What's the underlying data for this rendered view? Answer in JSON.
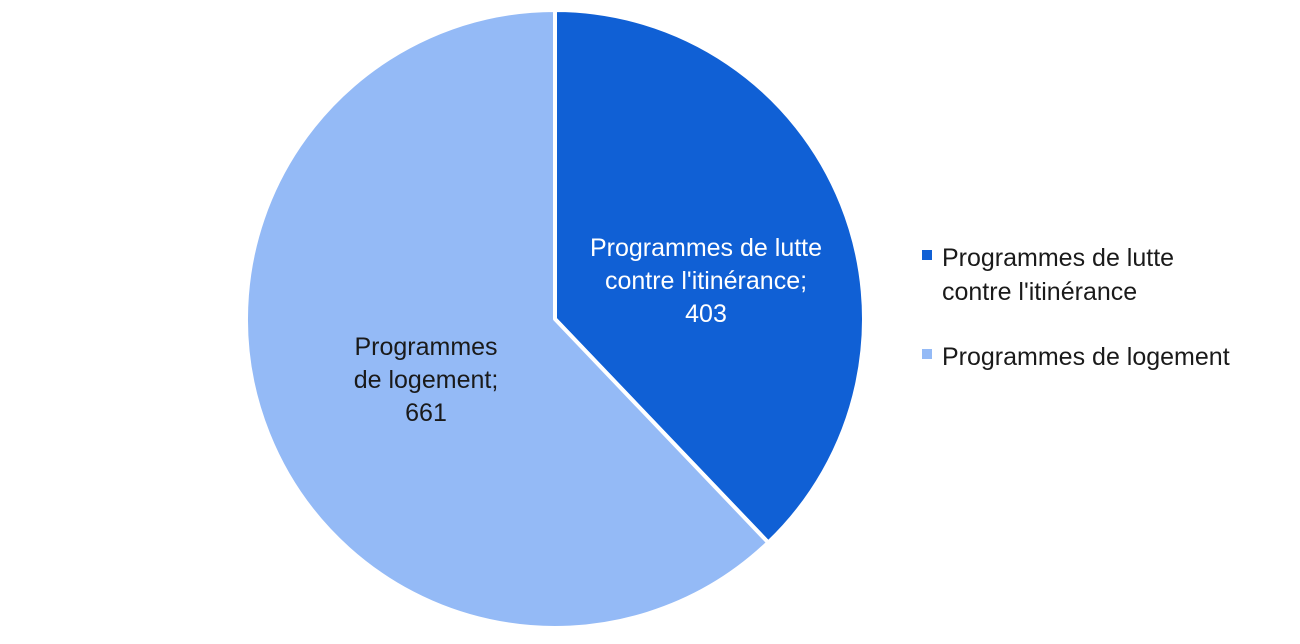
{
  "chart_data": {
    "type": "pie",
    "title": "",
    "slices": [
      {
        "name": "Programmes de lutte contre l'itinérance",
        "value": 403,
        "color": "#1060D5",
        "label_lines": [
          "Programmes de lutte",
          "contre l'itinérance;",
          "403"
        ],
        "label_color": "#ffffff"
      },
      {
        "name": "Programmes de logement",
        "value": 661,
        "color": "#94BAF6",
        "label_lines": [
          "Programmes",
          "de logement;",
          "661"
        ],
        "label_color": "#1a1a1a"
      }
    ],
    "legend": {
      "placement": "right",
      "items": [
        {
          "lines": [
            "Programmes de lutte",
            "contre l'itinérance"
          ],
          "color": "#1060D5"
        },
        {
          "lines": [
            "Programmes de logement"
          ],
          "color": "#94BAF6"
        }
      ]
    },
    "start_angle": "12 o'clock",
    "direction": "clockwise"
  }
}
